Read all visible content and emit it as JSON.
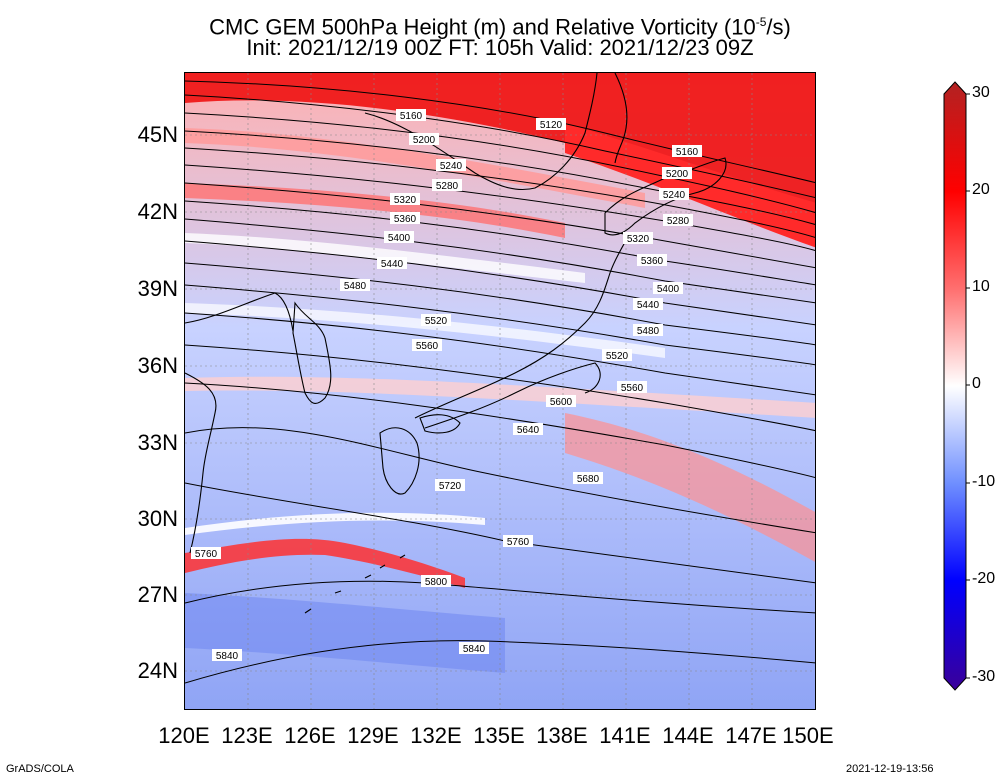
{
  "title": {
    "line1_prefix": "CMC GEM 500hPa Height (m) and Relative Vorticity (10",
    "line1_exp": "-5",
    "line1_suffix": "/s)",
    "line2": "Init: 2021/12/19 00Z  FT: 105h  Valid: 2021/12/23 09Z"
  },
  "axes": {
    "lat_labels": [
      "45N",
      "42N",
      "39N",
      "36N",
      "33N",
      "30N",
      "27N",
      "24N"
    ],
    "lon_labels": [
      "120E",
      "123E",
      "126E",
      "129E",
      "132E",
      "135E",
      "138E",
      "141E",
      "144E",
      "147E",
      "150E"
    ]
  },
  "colorbar": {
    "labels": [
      "30",
      "20",
      "10",
      "0",
      "-10",
      "-20",
      "-30"
    ],
    "min": -30,
    "max": 30,
    "colors": [
      "#3a0099",
      "#0000ff",
      "#6f8fff",
      "#ffffff",
      "#ff6f6f",
      "#ff0000",
      "#b22222"
    ]
  },
  "contours": {
    "labels": [
      "5120",
      "5160",
      "5200",
      "5240",
      "5280",
      "5320",
      "5360",
      "5400",
      "5440",
      "5480",
      "5520",
      "5560",
      "5600",
      "5640",
      "5680",
      "5720",
      "5760",
      "5800",
      "5840"
    ]
  },
  "footer": {
    "left": "GrADS/COLA",
    "right": "2021-12-19-13:56"
  }
}
